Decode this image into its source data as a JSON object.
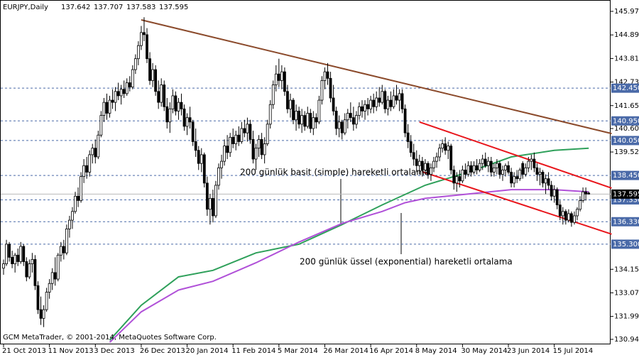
{
  "chart_data": {
    "type": "candlestick",
    "title": "EURJPY,Daily",
    "ohlc_header": [
      137.642,
      137.707,
      137.583,
      137.595
    ],
    "footer": "GCM MetaTrader, © 2001-2014, MetaQuotes Software Corp.",
    "ylim": [
      130.71,
      146.49
    ],
    "yticks": [
      {
        "value": 145.97,
        "label": "145.970"
      },
      {
        "value": 144.89,
        "label": "144.890"
      },
      {
        "value": 143.81,
        "label": "143.810"
      },
      {
        "value": 142.73,
        "label": "142.730"
      },
      {
        "value": 141.65,
        "label": "141.650"
      },
      {
        "value": 140.6,
        "label": "140.600"
      },
      {
        "value": 139.525,
        "label": "139.525"
      },
      {
        "value": 134.15,
        "label": "134.150"
      },
      {
        "value": 133.07,
        "label": "133.070"
      },
      {
        "value": 131.99,
        "label": "131.990"
      },
      {
        "value": 130.94,
        "label": "130.940"
      }
    ],
    "levels": [
      {
        "value": 142.45,
        "label": "142.450"
      },
      {
        "value": 140.95,
        "label": "140.950"
      },
      {
        "value": 140.05,
        "label": "140.050"
      },
      {
        "value": 138.45,
        "label": "138.450"
      },
      {
        "value": 137.33,
        "label": "137.330"
      },
      {
        "value": 136.33,
        "label": "136.330"
      },
      {
        "value": 135.3,
        "label": "135.300"
      }
    ],
    "levels_color": "#4a6aa8",
    "current_price": 137.595,
    "xticks": [
      {
        "value": 0,
        "label": "21 Oct 2013"
      },
      {
        "value": 16,
        "label": "11 Nov 2013"
      },
      {
        "value": 32,
        "label": "3 Dec 2013"
      },
      {
        "value": 48,
        "label": "26 Dec 2013"
      },
      {
        "value": 64,
        "label": "20 Jan 2014"
      },
      {
        "value": 80,
        "label": "11 Feb 2014"
      },
      {
        "value": 96,
        "label": "5 Mar 2014"
      },
      {
        "value": 112,
        "label": "26 Mar 2014"
      },
      {
        "value": 128,
        "label": "16 Apr 2014"
      },
      {
        "value": 144,
        "label": "8 May 2014"
      },
      {
        "value": 160,
        "label": "30 May 2014"
      },
      {
        "value": 176,
        "label": "23 Jun 2014"
      },
      {
        "value": 192,
        "label": "15 Jul 2014"
      }
    ],
    "ohlc": [
      [
        134.2,
        134.6,
        133.9,
        134.4
      ],
      [
        134.4,
        135.5,
        134.3,
        135.3
      ],
      [
        135.3,
        135.4,
        134.5,
        134.7
      ],
      [
        134.7,
        135.0,
        134.2,
        134.4
      ],
      [
        134.4,
        134.9,
        134.0,
        134.8
      ],
      [
        134.8,
        135.1,
        134.3,
        134.5
      ],
      [
        134.5,
        135.4,
        134.4,
        135.2
      ],
      [
        135.2,
        135.3,
        134.3,
        134.5
      ],
      [
        134.5,
        134.7,
        133.6,
        133.8
      ],
      [
        133.8,
        134.6,
        133.7,
        134.4
      ],
      [
        134.4,
        134.9,
        134.0,
        134.6
      ],
      [
        134.6,
        134.8,
        133.2,
        133.4
      ],
      [
        133.4,
        133.6,
        132.1,
        132.3
      ],
      [
        132.3,
        132.9,
        131.6,
        131.9
      ],
      [
        131.9,
        132.5,
        131.5,
        132.3
      ],
      [
        132.3,
        133.3,
        132.2,
        133.1
      ],
      [
        133.1,
        133.7,
        132.8,
        133.5
      ],
      [
        133.5,
        134.2,
        133.2,
        134.0
      ],
      [
        134.0,
        134.7,
        133.4,
        133.7
      ],
      [
        133.7,
        134.9,
        133.6,
        134.8
      ],
      [
        134.8,
        135.4,
        134.5,
        135.2
      ],
      [
        135.2,
        135.5,
        134.6,
        134.9
      ],
      [
        134.9,
        136.2,
        134.8,
        136.0
      ],
      [
        136.0,
        136.6,
        135.6,
        136.4
      ],
      [
        136.4,
        137.0,
        136.0,
        136.8
      ],
      [
        136.8,
        137.7,
        136.7,
        137.5
      ],
      [
        137.5,
        137.9,
        137.0,
        137.3
      ],
      [
        137.3,
        138.6,
        137.2,
        138.4
      ],
      [
        138.4,
        139.2,
        138.1,
        138.9
      ],
      [
        138.9,
        139.3,
        138.3,
        138.6
      ],
      [
        138.6,
        139.6,
        138.4,
        139.4
      ],
      [
        139.4,
        139.9,
        139.0,
        139.7
      ],
      [
        139.7,
        140.1,
        139.0,
        139.3
      ],
      [
        139.3,
        140.5,
        139.2,
        140.3
      ],
      [
        140.3,
        141.4,
        140.2,
        141.2
      ],
      [
        141.2,
        142.0,
        140.9,
        141.8
      ],
      [
        141.8,
        142.2,
        141.0,
        141.3
      ],
      [
        141.3,
        142.1,
        141.1,
        141.9
      ],
      [
        141.9,
        142.4,
        141.5,
        141.8
      ],
      [
        141.8,
        142.5,
        141.4,
        142.3
      ],
      [
        142.3,
        142.7,
        141.9,
        142.1
      ],
      [
        142.1,
        142.6,
        141.7,
        142.4
      ],
      [
        142.4,
        142.8,
        142.0,
        142.2
      ],
      [
        142.2,
        142.9,
        142.1,
        142.7
      ],
      [
        142.7,
        143.0,
        142.3,
        142.5
      ],
      [
        142.5,
        143.5,
        142.4,
        143.3
      ],
      [
        143.3,
        144.0,
        143.1,
        143.8
      ],
      [
        143.8,
        144.6,
        143.5,
        144.4
      ],
      [
        144.4,
        145.3,
        144.2,
        145.0
      ],
      [
        145.0,
        145.7,
        144.6,
        144.9
      ],
      [
        144.9,
        145.2,
        143.6,
        143.8
      ],
      [
        143.8,
        144.1,
        142.6,
        142.8
      ],
      [
        142.8,
        143.6,
        142.5,
        143.3
      ],
      [
        143.3,
        143.5,
        142.1,
        142.3
      ],
      [
        142.3,
        142.8,
        141.5,
        141.8
      ],
      [
        141.8,
        142.9,
        141.6,
        142.6
      ],
      [
        142.6,
        142.8,
        141.4,
        141.6
      ],
      [
        141.6,
        142.0,
        140.6,
        140.9
      ],
      [
        140.9,
        141.8,
        140.4,
        141.5
      ],
      [
        141.5,
        142.4,
        141.3,
        142.1
      ],
      [
        142.1,
        142.3,
        141.2,
        141.4
      ],
      [
        141.4,
        142.0,
        141.0,
        141.8
      ],
      [
        141.8,
        142.2,
        141.2,
        141.5
      ],
      [
        141.5,
        141.7,
        140.5,
        140.7
      ],
      [
        140.7,
        141.3,
        140.3,
        141.1
      ],
      [
        141.1,
        141.6,
        140.6,
        140.9
      ],
      [
        140.9,
        141.0,
        139.8,
        140.0
      ],
      [
        140.0,
        140.6,
        139.3,
        139.6
      ],
      [
        139.6,
        139.8,
        138.7,
        139.0
      ],
      [
        139.0,
        139.7,
        138.6,
        139.4
      ],
      [
        139.4,
        139.5,
        137.9,
        138.1
      ],
      [
        138.1,
        138.4,
        136.6,
        136.9
      ],
      [
        136.9,
        137.6,
        136.2,
        137.4
      ],
      [
        137.4,
        137.8,
        136.3,
        136.6
      ],
      [
        136.6,
        138.2,
        136.5,
        138.0
      ],
      [
        138.0,
        139.0,
        137.8,
        138.8
      ],
      [
        138.8,
        139.4,
        138.3,
        139.1
      ],
      [
        139.1,
        140.1,
        138.9,
        139.8
      ],
      [
        139.8,
        140.3,
        139.2,
        139.5
      ],
      [
        139.5,
        140.4,
        139.3,
        140.2
      ],
      [
        140.2,
        140.6,
        139.7,
        139.9
      ],
      [
        139.9,
        140.5,
        139.6,
        140.3
      ],
      [
        140.3,
        140.7,
        139.8,
        140.0
      ],
      [
        140.0,
        140.9,
        139.9,
        140.6
      ],
      [
        140.6,
        141.0,
        140.2,
        140.4
      ],
      [
        140.4,
        141.1,
        140.0,
        140.8
      ],
      [
        140.8,
        141.0,
        139.9,
        140.1
      ],
      [
        140.1,
        140.5,
        139.0,
        139.2
      ],
      [
        139.2,
        139.9,
        138.7,
        139.7
      ],
      [
        139.7,
        140.3,
        139.3,
        140.1
      ],
      [
        140.1,
        140.4,
        139.2,
        139.4
      ],
      [
        139.4,
        140.2,
        139.0,
        139.9
      ],
      [
        139.9,
        141.0,
        139.8,
        140.8
      ],
      [
        140.8,
        141.9,
        140.6,
        141.7
      ],
      [
        141.7,
        142.8,
        141.5,
        142.6
      ],
      [
        142.6,
        143.5,
        142.3,
        143.1
      ],
      [
        143.1,
        143.8,
        142.5,
        142.8
      ],
      [
        142.8,
        143.5,
        142.4,
        143.2
      ],
      [
        143.2,
        143.4,
        142.1,
        142.3
      ],
      [
        142.3,
        142.6,
        141.3,
        141.5
      ],
      [
        141.5,
        142.2,
        141.1,
        141.9
      ],
      [
        141.9,
        142.0,
        140.8,
        141.0
      ],
      [
        141.0,
        141.7,
        140.5,
        141.4
      ],
      [
        141.4,
        141.6,
        140.6,
        140.8
      ],
      [
        140.8,
        141.5,
        140.4,
        141.2
      ],
      [
        141.2,
        141.4,
        140.5,
        140.7
      ],
      [
        140.7,
        141.6,
        140.6,
        141.3
      ],
      [
        141.3,
        141.5,
        140.4,
        140.6
      ],
      [
        140.6,
        141.4,
        140.3,
        141.1
      ],
      [
        141.1,
        141.3,
        140.6,
        140.9
      ],
      [
        140.9,
        142.1,
        140.8,
        141.9
      ],
      [
        141.9,
        143.0,
        141.7,
        142.8
      ],
      [
        142.8,
        143.4,
        142.4,
        143.2
      ],
      [
        143.2,
        143.6,
        142.6,
        142.9
      ],
      [
        142.9,
        143.2,
        141.8,
        142.0
      ],
      [
        142.0,
        142.6,
        141.2,
        141.4
      ],
      [
        141.4,
        141.6,
        140.3,
        140.6
      ],
      [
        140.6,
        141.2,
        140.2,
        140.9
      ],
      [
        140.9,
        141.0,
        140.1,
        140.4
      ],
      [
        140.4,
        141.3,
        140.3,
        141.0
      ],
      [
        141.0,
        141.5,
        140.6,
        141.3
      ],
      [
        141.3,
        141.8,
        140.9,
        141.1
      ],
      [
        141.1,
        141.6,
        140.5,
        140.8
      ],
      [
        140.8,
        141.4,
        140.6,
        141.2
      ],
      [
        141.2,
        141.8,
        141.0,
        141.6
      ],
      [
        141.6,
        141.9,
        141.1,
        141.4
      ],
      [
        141.4,
        141.9,
        141.0,
        141.7
      ],
      [
        141.7,
        142.0,
        141.2,
        141.5
      ],
      [
        141.5,
        142.1,
        141.3,
        141.9
      ],
      [
        141.9,
        142.2,
        141.3,
        141.6
      ],
      [
        141.6,
        142.3,
        141.4,
        142.0
      ],
      [
        142.0,
        142.5,
        141.6,
        141.8
      ],
      [
        141.8,
        142.6,
        141.7,
        142.3
      ],
      [
        142.3,
        142.4,
        141.3,
        141.5
      ],
      [
        141.5,
        142.1,
        141.2,
        141.9
      ],
      [
        141.9,
        142.3,
        141.4,
        141.6
      ],
      [
        141.6,
        142.4,
        141.5,
        142.1
      ],
      [
        142.1,
        142.6,
        141.7,
        141.9
      ],
      [
        141.9,
        142.4,
        141.4,
        142.2
      ],
      [
        142.2,
        142.4,
        141.3,
        141.5
      ],
      [
        141.5,
        141.7,
        140.2,
        140.4
      ],
      [
        140.4,
        140.8,
        139.7,
        140.0
      ],
      [
        140.0,
        140.3,
        139.3,
        139.5
      ],
      [
        139.5,
        139.9,
        138.9,
        139.2
      ],
      [
        139.2,
        139.6,
        138.6,
        138.9
      ],
      [
        138.9,
        139.4,
        138.5,
        139.1
      ],
      [
        139.1,
        139.3,
        138.4,
        138.7
      ],
      [
        138.7,
        139.2,
        138.5,
        139.0
      ],
      [
        139.0,
        139.1,
        138.3,
        138.5
      ],
      [
        138.5,
        139.0,
        138.2,
        138.8
      ],
      [
        138.8,
        139.3,
        138.6,
        139.1
      ],
      [
        139.1,
        139.5,
        138.8,
        139.3
      ],
      [
        139.3,
        139.9,
        139.1,
        139.7
      ],
      [
        139.7,
        140.1,
        139.5,
        139.9
      ],
      [
        139.9,
        140.2,
        139.4,
        139.6
      ],
      [
        139.6,
        140.0,
        139.2,
        139.8
      ],
      [
        139.8,
        139.9,
        138.5,
        138.7
      ],
      [
        138.7,
        138.9,
        137.8,
        138.1
      ],
      [
        138.1,
        138.6,
        137.7,
        138.4
      ],
      [
        138.4,
        138.7,
        137.9,
        138.2
      ],
      [
        138.2,
        138.9,
        138.1,
        138.7
      ],
      [
        138.7,
        139.0,
        138.3,
        138.5
      ],
      [
        138.5,
        139.1,
        138.4,
        138.9
      ],
      [
        138.9,
        139.1,
        138.4,
        138.6
      ],
      [
        138.6,
        139.1,
        138.5,
        138.9
      ],
      [
        138.9,
        139.2,
        138.5,
        138.7
      ],
      [
        138.7,
        139.2,
        138.6,
        139.0
      ],
      [
        139.0,
        139.4,
        138.7,
        139.2
      ],
      [
        139.2,
        139.5,
        138.8,
        138.9
      ],
      [
        138.9,
        139.3,
        138.6,
        139.1
      ],
      [
        139.1,
        139.3,
        138.4,
        138.6
      ],
      [
        138.6,
        139.0,
        138.4,
        138.8
      ],
      [
        138.8,
        139.2,
        138.5,
        139.0
      ],
      [
        139.0,
        139.1,
        138.3,
        138.5
      ],
      [
        138.5,
        138.9,
        138.2,
        138.7
      ],
      [
        138.7,
        139.0,
        138.4,
        138.9
      ],
      [
        138.9,
        139.1,
        138.5,
        138.6
      ],
      [
        138.6,
        138.8,
        137.9,
        138.1
      ],
      [
        138.1,
        138.6,
        137.9,
        138.4
      ],
      [
        138.4,
        138.7,
        138.1,
        138.3
      ],
      [
        138.3,
        138.8,
        138.2,
        138.7
      ],
      [
        139.0,
        139.1,
        138.3,
        138.5
      ],
      [
        138.5,
        139.0,
        138.4,
        138.8
      ],
      [
        138.8,
        139.3,
        138.6,
        139.1
      ],
      [
        139.1,
        139.4,
        138.7,
        139.2
      ],
      [
        139.2,
        139.5,
        138.6,
        138.8
      ],
      [
        138.8,
        139.0,
        138.2,
        138.5
      ],
      [
        138.5,
        138.8,
        138.0,
        138.6
      ],
      [
        138.6,
        138.7,
        137.9,
        138.1
      ],
      [
        138.1,
        138.5,
        137.6,
        138.3
      ],
      [
        138.3,
        138.6,
        137.8,
        138.0
      ],
      [
        138.0,
        138.2,
        137.3,
        137.5
      ],
      [
        137.5,
        138.0,
        137.2,
        137.8
      ],
      [
        137.8,
        137.9,
        136.9,
        137.1
      ],
      [
        137.1,
        137.3,
        136.4,
        136.6
      ],
      [
        136.6,
        137.0,
        136.2,
        136.8
      ],
      [
        136.8,
        136.9,
        136.2,
        136.4
      ],
      [
        136.4,
        136.9,
        136.3,
        136.7
      ],
      [
        136.7,
        136.8,
        136.1,
        136.3
      ],
      [
        136.3,
        136.8,
        136.2,
        136.6
      ],
      [
        136.6,
        137.0,
        136.4,
        136.9
      ],
      [
        136.9,
        137.5,
        136.8,
        137.3
      ],
      [
        137.3,
        137.9,
        137.2,
        137.7
      ],
      [
        137.7,
        137.9,
        137.3,
        137.6
      ],
      [
        137.642,
        137.707,
        137.583,
        137.595
      ]
    ],
    "candle_colors": {
      "up": "#ffffff",
      "down": "#000000",
      "outline": "#000000"
    },
    "series": [
      {
        "name": "200 günlük basit (simple) hareketli ortalama",
        "color": "#2ea05a",
        "x": [
          37,
          48,
          61,
          73,
          88,
          103,
          118,
          132,
          147,
          162,
          177,
          192,
          204
        ],
        "values": [
          130.9,
          132.5,
          133.8,
          134.1,
          134.9,
          135.3,
          136.2,
          137.1,
          138.0,
          138.6,
          139.3,
          139.6,
          139.7
        ]
      },
      {
        "name": "200 günlük üssel (exponential) hareketli ortalama",
        "color": "#b050d8",
        "x": [
          37,
          48,
          61,
          73,
          88,
          103,
          118,
          132,
          140,
          147,
          162,
          177,
          192,
          204
        ],
        "values": [
          130.8,
          132.2,
          133.2,
          133.6,
          134.45,
          135.4,
          136.25,
          136.8,
          137.2,
          137.4,
          137.6,
          137.8,
          137.8,
          137.7
        ]
      }
    ],
    "trendlines": [
      {
        "color": "#8b4a2b",
        "x": [
          48,
          212
        ],
        "values": [
          145.58,
          140.37
        ]
      },
      {
        "color": "#e8141a",
        "x": [
          145,
          212
        ],
        "values": [
          140.9,
          137.87
        ]
      },
      {
        "color": "#e8141a",
        "x": [
          146,
          212
        ],
        "values": [
          138.62,
          135.76
        ]
      }
    ]
  }
}
